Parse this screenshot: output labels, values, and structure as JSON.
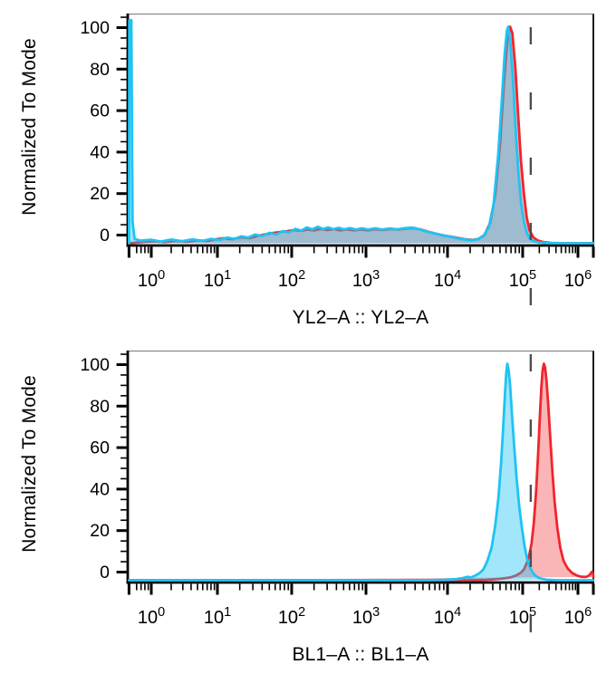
{
  "styles": {
    "background": "#ffffff",
    "axis_color": "#000000",
    "frame_top_color": "#8a8a8a",
    "frame_right_color": "#1a1a1a",
    "gate_color": "#4d4d4d",
    "tick_label_color": "#000000"
  },
  "chart_data": [
    {
      "type": "area",
      "panel": "top",
      "xlabel": "YL2–A :: YL2–A",
      "ylabel": "Normalized To Mode",
      "xscale": "log",
      "xtick_exponents": [
        0,
        1,
        2,
        3,
        4,
        5,
        6
      ],
      "yticks": [
        0,
        20,
        40,
        60,
        80,
        100
      ],
      "ylim": [
        0,
        100
      ],
      "xrange_approx": [
        0.46,
        1900000
      ],
      "gate_marker_x": 140000,
      "axis_decade_fractions": [
        0.0506,
        0.1926,
        0.3521,
        0.5117,
        0.6868,
        0.8482,
        0.9669
      ],
      "grid": false,
      "legend": "none",
      "series": [
        {
          "id": "red",
          "stroke": "#f1252c",
          "fill": "rgba(241,37,44,0.34)",
          "points": [
            [
              0.46,
              0
            ],
            [
              0.7,
              0.5
            ],
            [
              1.1,
              0.9
            ],
            [
              1.6,
              0.5
            ],
            [
              2.3,
              1.1
            ],
            [
              3.4,
              0.7
            ],
            [
              5,
              1.3
            ],
            [
              7,
              1.0
            ],
            [
              9,
              1.7
            ],
            [
              12,
              2.3
            ],
            [
              16,
              1.9
            ],
            [
              21,
              2.7
            ],
            [
              27,
              2.3
            ],
            [
              34,
              3.3
            ],
            [
              43,
              4.0
            ],
            [
              55,
              4.7
            ],
            [
              70,
              5.2
            ],
            [
              88,
              5.6
            ],
            [
              110,
              6.1
            ],
            [
              135,
              5.7
            ],
            [
              165,
              6.4
            ],
            [
              200,
              5.9
            ],
            [
              245,
              6.6
            ],
            [
              300,
              6.1
            ],
            [
              370,
              6.5
            ],
            [
              450,
              6.0
            ],
            [
              560,
              6.4
            ],
            [
              700,
              6.0
            ],
            [
              860,
              6.4
            ],
            [
              1050,
              6.0
            ],
            [
              1300,
              6.5
            ],
            [
              1600,
              6.1
            ],
            [
              2000,
              6.6
            ],
            [
              2500,
              6.3
            ],
            [
              3100,
              6.8
            ],
            [
              3800,
              7.0
            ],
            [
              4700,
              6.3
            ],
            [
              5800,
              5.3
            ],
            [
              7200,
              4.4
            ],
            [
              8800,
              3.7
            ],
            [
              11000,
              3.0
            ],
            [
              14000,
              2.4
            ],
            [
              17500,
              1.8
            ],
            [
              21500,
              1.5
            ],
            [
              26000,
              2.0
            ],
            [
              31000,
              3.8
            ],
            [
              37000,
              9.5
            ],
            [
              43000,
              22
            ],
            [
              50000,
              46
            ],
            [
              56000,
              73
            ],
            [
              62000,
              93
            ],
            [
              68000,
              100
            ],
            [
              73000,
              97
            ],
            [
              80000,
              81
            ],
            [
              87000,
              59
            ],
            [
              95000,
              38
            ],
            [
              105000,
              23
            ],
            [
              118000,
              12
            ],
            [
              133000,
              6
            ],
            [
              155000,
              2.8
            ],
            [
              185000,
              1.3
            ],
            [
              240000,
              0.5
            ],
            [
              330000,
              0.15
            ],
            [
              600000,
              0
            ],
            [
              1900000,
              0
            ]
          ]
        },
        {
          "id": "cyan",
          "stroke": "#1fc3f3",
          "fill": "rgba(31,195,243,0.42)",
          "points": [
            [
              0.46,
              0
            ],
            [
              0.465,
              103
            ],
            [
              0.5,
              103
            ],
            [
              0.52,
              10
            ],
            [
              0.56,
              2
            ],
            [
              0.68,
              1.2
            ],
            [
              1.0,
              1.6
            ],
            [
              1.4,
              0.8
            ],
            [
              2.0,
              1.7
            ],
            [
              2.9,
              0.9
            ],
            [
              4.2,
              1.8
            ],
            [
              6,
              1.1
            ],
            [
              8,
              2.0
            ],
            [
              10.5,
              1.5
            ],
            [
              13.5,
              2.6
            ],
            [
              17,
              2.0
            ],
            [
              21,
              3.2
            ],
            [
              26,
              2.6
            ],
            [
              32,
              4.0
            ],
            [
              40,
              3.3
            ],
            [
              50,
              4.8
            ],
            [
              62,
              4.1
            ],
            [
              76,
              5.6
            ],
            [
              92,
              5.0
            ],
            [
              112,
              6.6
            ],
            [
              135,
              5.8
            ],
            [
              160,
              7.3
            ],
            [
              190,
              6.4
            ],
            [
              225,
              7.6
            ],
            [
              265,
              6.6
            ],
            [
              310,
              7.3
            ],
            [
              365,
              6.5
            ],
            [
              430,
              7.1
            ],
            [
              510,
              6.4
            ],
            [
              610,
              7.0
            ],
            [
              730,
              6.3
            ],
            [
              880,
              6.9
            ],
            [
              1060,
              6.3
            ],
            [
              1300,
              6.9
            ],
            [
              1580,
              6.3
            ],
            [
              1950,
              6.8
            ],
            [
              2400,
              6.4
            ],
            [
              3000,
              7.0
            ],
            [
              3700,
              7.2
            ],
            [
              4500,
              6.5
            ],
            [
              5600,
              5.3
            ],
            [
              6900,
              4.5
            ],
            [
              8400,
              3.8
            ],
            [
              10500,
              3.1
            ],
            [
              13000,
              2.4
            ],
            [
              16500,
              1.8
            ],
            [
              20500,
              1.4
            ],
            [
              25000,
              1.8
            ],
            [
              30000,
              3.3
            ],
            [
              35500,
              7.5
            ],
            [
              41000,
              18
            ],
            [
              47000,
              40
            ],
            [
              52500,
              65
            ],
            [
              57500,
              87
            ],
            [
              61500,
              98
            ],
            [
              64000,
              100
            ],
            [
              68000,
              94
            ],
            [
              73500,
              78
            ],
            [
              80000,
              55
            ],
            [
              87000,
              34
            ],
            [
              95000,
              19
            ],
            [
              105000,
              10
            ],
            [
              118000,
              5
            ],
            [
              133000,
              2.4
            ],
            [
              155000,
              1.0
            ],
            [
              190000,
              0.4
            ],
            [
              280000,
              0.1
            ],
            [
              600000,
              0
            ],
            [
              1900000,
              0
            ]
          ]
        }
      ]
    },
    {
      "type": "area",
      "panel": "bottom",
      "xlabel": "BL1–A :: BL1–A",
      "ylabel": "Normalized To Mode",
      "xscale": "log",
      "xtick_exponents": [
        0,
        1,
        2,
        3,
        4,
        5,
        6
      ],
      "yticks": [
        0,
        20,
        40,
        60,
        80,
        100
      ],
      "ylim": [
        0,
        100
      ],
      "xrange_approx": [
        0.46,
        1900000
      ],
      "gate_marker_x": 140000,
      "axis_decade_fractions": [
        0.0506,
        0.1926,
        0.3521,
        0.5117,
        0.6868,
        0.8482,
        0.9669
      ],
      "grid": false,
      "legend": "none",
      "series": [
        {
          "id": "red",
          "stroke": "#f1252c",
          "fill": "rgba(241,37,44,0.34)",
          "points": [
            [
              0.46,
              0
            ],
            [
              20000,
              0
            ],
            [
              32000,
              0.2
            ],
            [
              45000,
              0.5
            ],
            [
              58000,
              0.9
            ],
            [
              70000,
              1.4
            ],
            [
              82000,
              2.2
            ],
            [
              95000,
              3.5
            ],
            [
              105000,
              5
            ],
            [
              117000,
              7.5
            ],
            [
              130000,
              11
            ],
            [
              145000,
              17
            ],
            [
              160000,
              27
            ],
            [
              175000,
              41
            ],
            [
              190000,
              58
            ],
            [
              205000,
              76
            ],
            [
              218000,
              89
            ],
            [
              230000,
              97
            ],
            [
              242000,
              100
            ],
            [
              255000,
              98
            ],
            [
              270000,
              92
            ],
            [
              290000,
              81
            ],
            [
              315000,
              66
            ],
            [
              345000,
              50
            ],
            [
              380000,
              36
            ],
            [
              425000,
              24
            ],
            [
              480000,
              15
            ],
            [
              550000,
              9
            ],
            [
              650000,
              5.5
            ],
            [
              780000,
              3.4
            ],
            [
              950000,
              2.2
            ],
            [
              1150000,
              1.6
            ],
            [
              1400000,
              1.5
            ],
            [
              1600000,
              2.2
            ],
            [
              1780000,
              3.8
            ],
            [
              1880000,
              3.0
            ],
            [
              1900000,
              1.5
            ]
          ]
        },
        {
          "id": "cyan",
          "stroke": "#1fc3f3",
          "fill": "rgba(31,195,243,0.42)",
          "points": [
            [
              0.46,
              0
            ],
            [
              5000,
              0
            ],
            [
              9000,
              0.2
            ],
            [
              13000,
              0.5
            ],
            [
              16000,
              1.0
            ],
            [
              18500,
              1.6
            ],
            [
              20500,
              1.3
            ],
            [
              23000,
              2.0
            ],
            [
              26500,
              3.2
            ],
            [
              30000,
              5
            ],
            [
              34000,
              9
            ],
            [
              38500,
              15
            ],
            [
              43000,
              25
            ],
            [
              47500,
              38
            ],
            [
              51500,
              54
            ],
            [
              55000,
              70
            ],
            [
              58000,
              85
            ],
            [
              60500,
              96
            ],
            [
              62500,
              100
            ],
            [
              65000,
              97
            ],
            [
              68000,
              90
            ],
            [
              72000,
              77
            ],
            [
              77000,
              62
            ],
            [
              83000,
              47
            ],
            [
              90000,
              34
            ],
            [
              98000,
              24
            ],
            [
              108000,
              16
            ],
            [
              120000,
              10
            ],
            [
              135000,
              6
            ],
            [
              155000,
              3.2
            ],
            [
              180000,
              1.6
            ],
            [
              215000,
              0.7
            ],
            [
              270000,
              0.25
            ],
            [
              400000,
              0.05
            ],
            [
              700000,
              0
            ],
            [
              1900000,
              0
            ]
          ]
        }
      ]
    }
  ]
}
